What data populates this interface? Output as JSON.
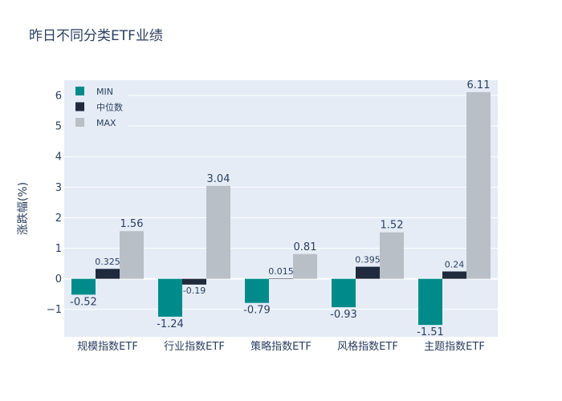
{
  "chart_data": {
    "type": "bar",
    "title": "昨日不同分类ETF业绩",
    "xlabel": "",
    "ylabel": "涨跌幅(%)",
    "categories": [
      "规模指数ETF",
      "行业指数ETF",
      "策略指数ETF",
      "风格指数ETF",
      "主题指数ETF"
    ],
    "series": [
      {
        "name": "MIN",
        "color": "#008b8b",
        "values": [
          -0.52,
          -1.24,
          -0.79,
          -0.93,
          -1.51
        ],
        "labels": [
          "-0.52",
          "-1.24",
          "-0.79",
          "-0.93",
          "-1.51"
        ]
      },
      {
        "name": "中位数",
        "color": "#1f2a3c",
        "values": [
          0.325,
          -0.19,
          0.015,
          0.395,
          0.24
        ],
        "labels": [
          "0.325",
          "-0.19",
          "0.015",
          "0.395",
          "0.24"
        ]
      },
      {
        "name": "MAX",
        "color": "#b8bfc7",
        "values": [
          1.56,
          3.04,
          0.81,
          1.52,
          6.11
        ],
        "labels": [
          "1.56",
          "3.04",
          "0.81",
          "1.52",
          "6.11"
        ]
      }
    ],
    "ylim": [
      -1.9,
      6.5
    ],
    "yticks": [
      -1,
      0,
      1,
      2,
      3,
      4,
      5,
      6
    ],
    "ytick_labels": [
      "−1",
      "0",
      "1",
      "2",
      "3",
      "4",
      "5",
      "6"
    ],
    "grid": true,
    "legend_position": "top-left",
    "plot_background": "#e5ecf6"
  }
}
